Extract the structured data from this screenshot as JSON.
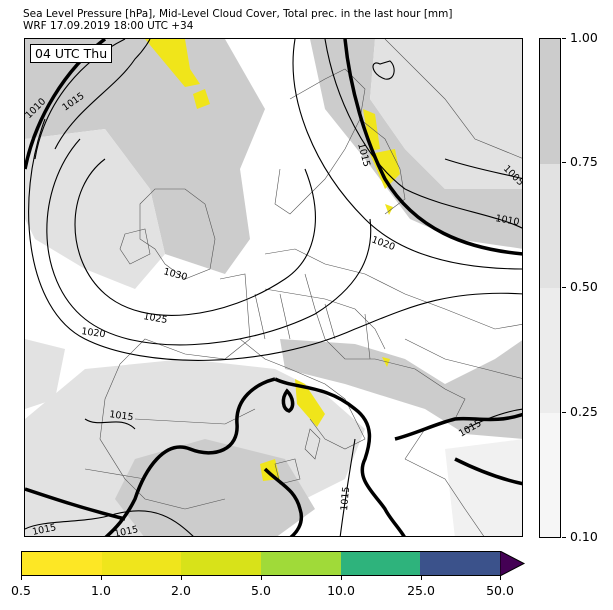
{
  "title_line1": "Sea Level Pressure [hPa], Mid-Level Cloud Cover, Total prec. in the last hour [mm]",
  "title_line2": "WRF 17.09.2019 18:00 UTC +34",
  "time_label": "04 UTC Thu",
  "isobar_labels": {
    "l1": "1010",
    "l2": "1015",
    "l3": "1030",
    "l4": "1025",
    "l5": "1020",
    "l6": "1015",
    "l7": "1020",
    "l8": "1010",
    "l9": "1005",
    "l10": "1015",
    "l11": "1015",
    "l12": "1015",
    "l13": "1015",
    "l14": "1015"
  },
  "cloud_cover_colorbar": {
    "ticks": [
      "1.00",
      "0.75",
      "0.50",
      "0.25",
      "0.10"
    ],
    "colors": [
      "#cccccc",
      "#e2e2e2",
      "#ececec",
      "#f6f6f6"
    ]
  },
  "precip_colorbar": {
    "ticks": [
      "0.5",
      "1.0",
      "2.0",
      "5.0",
      "10.0",
      "25.0",
      "50.0"
    ],
    "colors": [
      "#fde725",
      "#efe51c",
      "#d8e219",
      "#a0da39",
      "#2eb37c",
      "#3b528b"
    ],
    "extend_color": "#440154"
  }
}
